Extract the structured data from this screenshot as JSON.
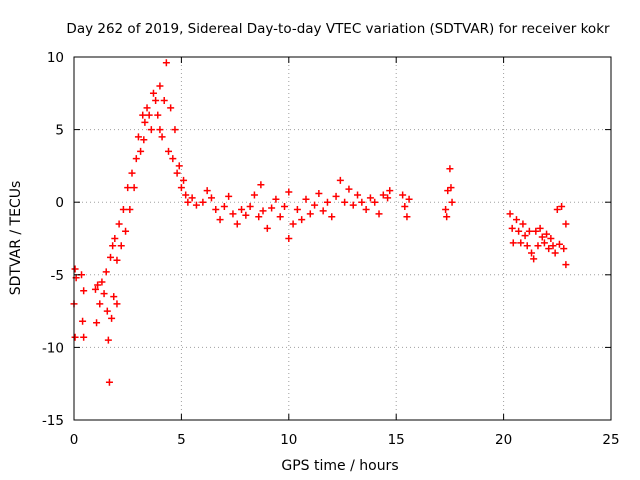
{
  "chart_data": {
    "type": "scatter",
    "title": "Day 262 of 2019, Sidereal Day-to-day VTEC variation (SDTVAR) for receiver kokr",
    "xlabel": "GPS time / hours",
    "ylabel": "SDTVAR / TECUs",
    "xlim": [
      0,
      25
    ],
    "ylim": [
      -15,
      10
    ],
    "xticks": [
      "0",
      "5",
      "10",
      "15",
      "20",
      "25"
    ],
    "yticks": [
      "-15",
      "-10",
      "-5",
      "0",
      "5",
      "10"
    ],
    "grid": true,
    "marker": "+",
    "color": "#ff0000",
    "series": [
      {
        "name": "SDTVAR",
        "points": [
          [
            0.0,
            -7.0
          ],
          [
            0.05,
            -9.3
          ],
          [
            0.05,
            -4.6
          ],
          [
            0.1,
            -5.2
          ],
          [
            0.35,
            -5.0
          ],
          [
            0.4,
            -8.2
          ],
          [
            0.45,
            -9.3
          ],
          [
            0.45,
            -6.1
          ],
          [
            1.0,
            -6.0
          ],
          [
            1.05,
            -8.3
          ],
          [
            1.1,
            -5.7
          ],
          [
            1.2,
            -7.0
          ],
          [
            1.3,
            -5.5
          ],
          [
            1.4,
            -6.3
          ],
          [
            1.5,
            -4.8
          ],
          [
            1.55,
            -7.5
          ],
          [
            1.6,
            -9.5
          ],
          [
            1.65,
            -12.4
          ],
          [
            1.7,
            -3.8
          ],
          [
            1.75,
            -8.0
          ],
          [
            1.8,
            -3.0
          ],
          [
            1.85,
            -6.5
          ],
          [
            1.9,
            -2.5
          ],
          [
            2.0,
            -4.0
          ],
          [
            2.0,
            -7.0
          ],
          [
            2.1,
            -1.5
          ],
          [
            2.2,
            -3.0
          ],
          [
            2.3,
            -0.5
          ],
          [
            2.4,
            -2.0
          ],
          [
            2.5,
            1.0
          ],
          [
            2.6,
            -0.5
          ],
          [
            2.7,
            2.0
          ],
          [
            2.8,
            1.0
          ],
          [
            2.9,
            3.0
          ],
          [
            3.0,
            4.5
          ],
          [
            3.1,
            3.5
          ],
          [
            3.2,
            6.0
          ],
          [
            3.25,
            4.3
          ],
          [
            3.3,
            5.5
          ],
          [
            3.4,
            6.5
          ],
          [
            3.5,
            6.0
          ],
          [
            3.6,
            5.0
          ],
          [
            3.7,
            7.5
          ],
          [
            3.8,
            7.0
          ],
          [
            3.9,
            6.0
          ],
          [
            4.0,
            5.0
          ],
          [
            4.0,
            8.0
          ],
          [
            4.1,
            4.5
          ],
          [
            4.2,
            7.0
          ],
          [
            4.3,
            9.6
          ],
          [
            4.4,
            3.5
          ],
          [
            4.5,
            6.5
          ],
          [
            4.6,
            3.0
          ],
          [
            4.7,
            5.0
          ],
          [
            4.8,
            2.0
          ],
          [
            4.9,
            2.5
          ],
          [
            5.0,
            1.0
          ],
          [
            5.1,
            1.5
          ],
          [
            5.2,
            0.5
          ],
          [
            5.3,
            0.0
          ],
          [
            5.5,
            0.3
          ],
          [
            5.7,
            -0.2
          ],
          [
            6.0,
            0.0
          ],
          [
            6.2,
            0.8
          ],
          [
            6.4,
            0.3
          ],
          [
            6.6,
            -0.5
          ],
          [
            6.8,
            -1.2
          ],
          [
            7.0,
            -0.3
          ],
          [
            7.2,
            0.4
          ],
          [
            7.4,
            -0.8
          ],
          [
            7.6,
            -1.5
          ],
          [
            7.8,
            -0.5
          ],
          [
            8.0,
            -0.9
          ],
          [
            8.2,
            -0.3
          ],
          [
            8.4,
            0.5
          ],
          [
            8.6,
            -1.0
          ],
          [
            8.7,
            1.2
          ],
          [
            8.8,
            -0.6
          ],
          [
            9.0,
            -1.8
          ],
          [
            9.2,
            -0.4
          ],
          [
            9.4,
            0.2
          ],
          [
            9.6,
            -1.0
          ],
          [
            9.8,
            -0.3
          ],
          [
            10.0,
            0.7
          ],
          [
            10.0,
            -2.5
          ],
          [
            10.2,
            -1.5
          ],
          [
            10.4,
            -0.5
          ],
          [
            10.6,
            -1.2
          ],
          [
            10.8,
            0.2
          ],
          [
            11.0,
            -0.8
          ],
          [
            11.2,
            -0.2
          ],
          [
            11.4,
            0.6
          ],
          [
            11.6,
            -0.6
          ],
          [
            11.8,
            0.0
          ],
          [
            12.0,
            -1.0
          ],
          [
            12.2,
            0.4
          ],
          [
            12.4,
            1.5
          ],
          [
            12.6,
            0.0
          ],
          [
            12.8,
            0.9
          ],
          [
            13.0,
            -0.2
          ],
          [
            13.2,
            0.5
          ],
          [
            13.4,
            0.0
          ],
          [
            13.6,
            -0.5
          ],
          [
            13.8,
            0.3
          ],
          [
            14.0,
            0.0
          ],
          [
            14.2,
            -0.8
          ],
          [
            14.4,
            0.5
          ],
          [
            14.6,
            0.3
          ],
          [
            14.7,
            0.8
          ],
          [
            15.3,
            0.5
          ],
          [
            15.4,
            -0.3
          ],
          [
            15.5,
            -1.0
          ],
          [
            15.6,
            0.2
          ],
          [
            17.3,
            -0.5
          ],
          [
            17.35,
            -1.0
          ],
          [
            17.4,
            0.8
          ],
          [
            17.5,
            2.3
          ],
          [
            17.55,
            1.0
          ],
          [
            17.6,
            0.0
          ],
          [
            20.3,
            -0.8
          ],
          [
            20.4,
            -1.8
          ],
          [
            20.45,
            -2.8
          ],
          [
            20.6,
            -1.2
          ],
          [
            20.7,
            -2.0
          ],
          [
            20.8,
            -2.8
          ],
          [
            20.9,
            -1.5
          ],
          [
            21.0,
            -2.3
          ],
          [
            21.1,
            -3.0
          ],
          [
            21.2,
            -2.0
          ],
          [
            21.3,
            -3.5
          ],
          [
            21.4,
            -3.9
          ],
          [
            21.5,
            -2.0
          ],
          [
            21.6,
            -3.0
          ],
          [
            21.7,
            -1.8
          ],
          [
            21.8,
            -2.4
          ],
          [
            21.9,
            -2.8
          ],
          [
            22.0,
            -2.2
          ],
          [
            22.1,
            -3.2
          ],
          [
            22.2,
            -2.5
          ],
          [
            22.3,
            -3.0
          ],
          [
            22.4,
            -3.5
          ],
          [
            22.5,
            -0.5
          ],
          [
            22.6,
            -2.9
          ],
          [
            22.7,
            -0.3
          ],
          [
            22.8,
            -3.2
          ],
          [
            22.9,
            -1.5
          ],
          [
            22.9,
            -4.3
          ]
        ]
      }
    ]
  }
}
